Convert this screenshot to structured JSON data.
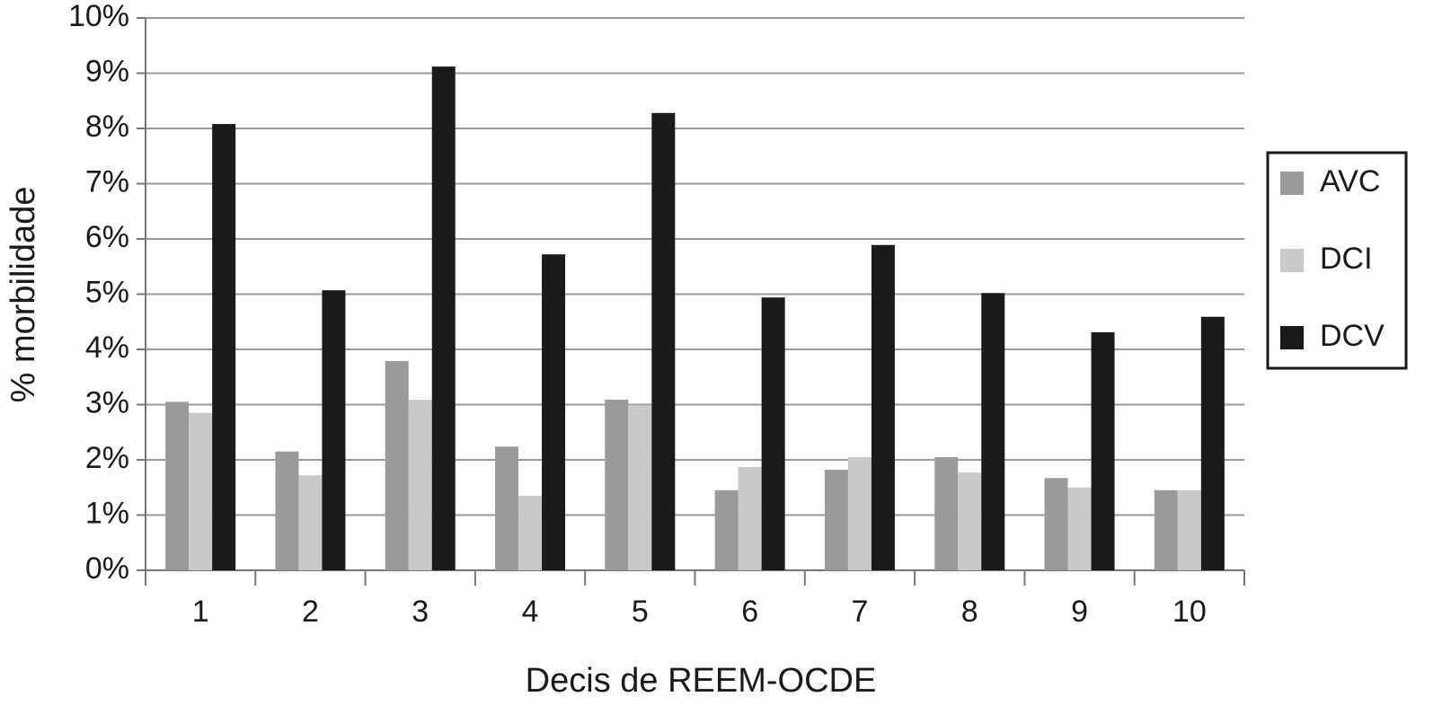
{
  "chart_data": {
    "type": "bar",
    "x_label": "Decis de REEM-OCDE",
    "y_label": "% morbilidade",
    "categories": [
      "1",
      "2",
      "3",
      "4",
      "5",
      "6",
      "7",
      "8",
      "9",
      "10"
    ],
    "series": [
      {
        "name": "AVC",
        "color": "#9a9a9a",
        "values": [
          3.05,
          2.15,
          3.79,
          2.24,
          3.09,
          1.45,
          1.82,
          2.05,
          1.67,
          1.45
        ]
      },
      {
        "name": "DCI",
        "color": "#c9c9c9",
        "values": [
          2.85,
          1.72,
          3.09,
          1.35,
          2.99,
          1.87,
          2.05,
          1.77,
          1.5,
          1.45
        ]
      },
      {
        "name": "DCV",
        "color": "#1a1a1a",
        "values": [
          8.08,
          5.07,
          9.12,
          5.72,
          8.28,
          4.94,
          5.89,
          5.02,
          4.31,
          4.59
        ]
      }
    ],
    "ylim": [
      0,
      10
    ],
    "yticks": [
      {
        "value": 0,
        "label": "0%"
      },
      {
        "value": 1,
        "label": "1%"
      },
      {
        "value": 2,
        "label": "2%"
      },
      {
        "value": 3,
        "label": "3%"
      },
      {
        "value": 4,
        "label": "4%"
      },
      {
        "value": 5,
        "label": "5%"
      },
      {
        "value": 6,
        "label": "6%"
      },
      {
        "value": 7,
        "label": "7%"
      },
      {
        "value": 8,
        "label": "8%"
      },
      {
        "value": 9,
        "label": "9%"
      },
      {
        "value": 10,
        "label": "10%"
      }
    ],
    "grid": true,
    "legend": "right"
  }
}
